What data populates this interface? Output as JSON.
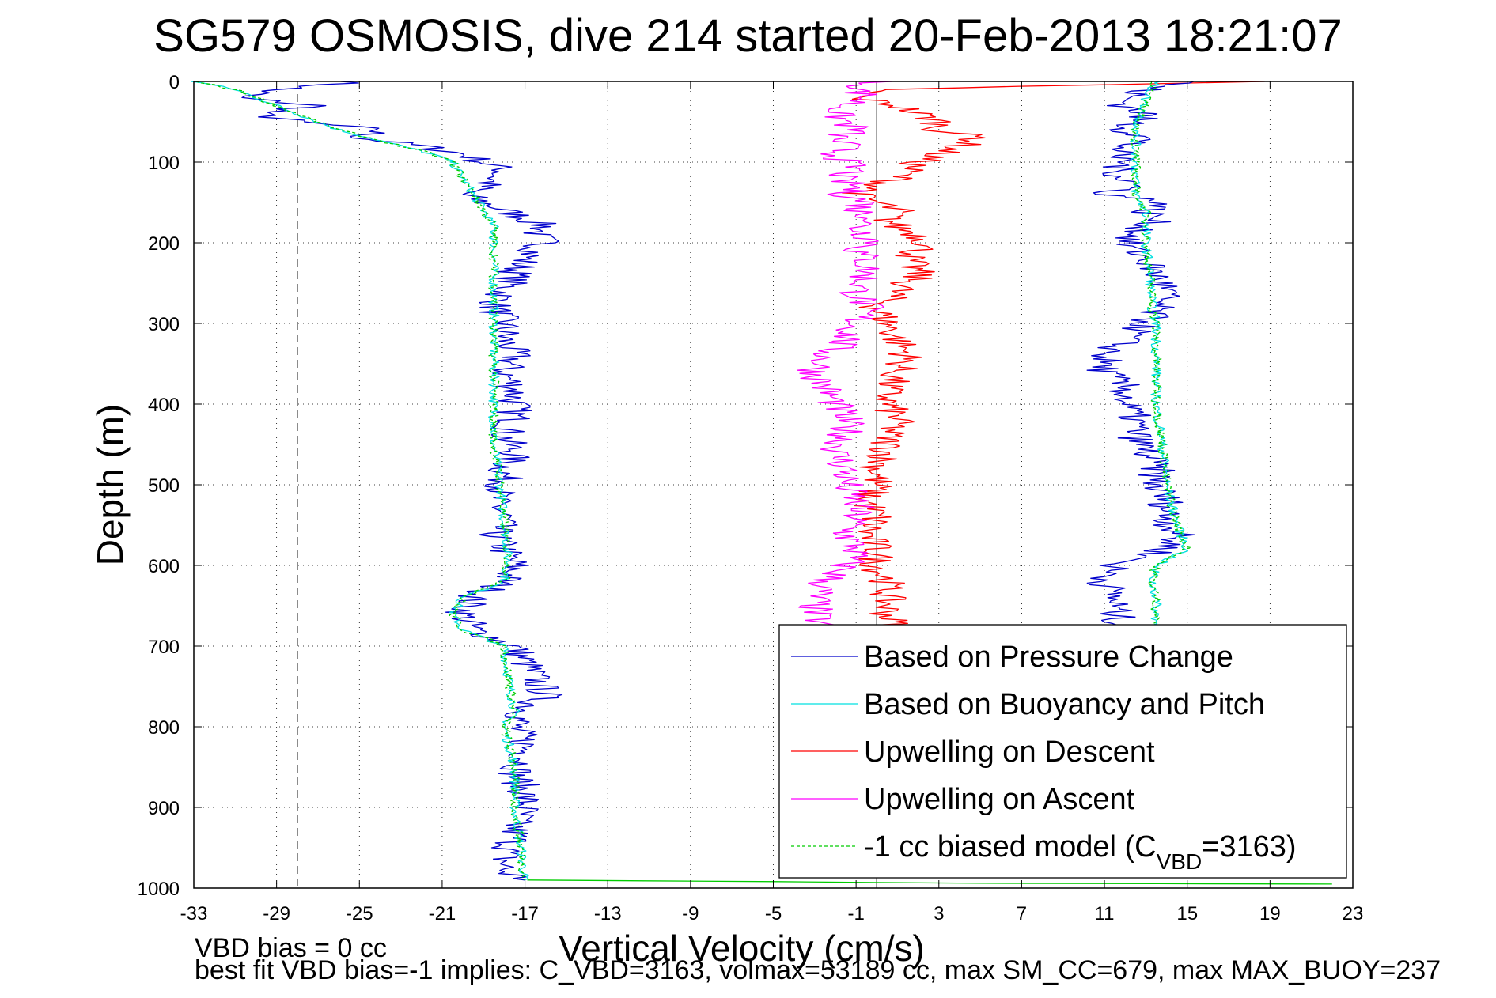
{
  "chart_data": {
    "type": "line",
    "title": "SG579 OSMOSIS, dive 214 started 20-Feb-2013 18:21:07",
    "xlabel": "Vertical Velocity (cm/s)",
    "ylabel": "Depth (m)",
    "xlim": [
      -33,
      23
    ],
    "ylim": [
      0,
      1000
    ],
    "y_reversed": true,
    "x_ticks": [
      "-33",
      "-29",
      "-25",
      "-21",
      "-17",
      "-13",
      "-9",
      "-5",
      "-1",
      "3",
      "7",
      "11",
      "15",
      "19",
      "23"
    ],
    "y_ticks": [
      "0",
      "100",
      "200",
      "300",
      "400",
      "500",
      "600",
      "700",
      "800",
      "900",
      "1000"
    ],
    "grid": true,
    "legend_position": "bottom-right",
    "reference_lines": [
      {
        "x": 0,
        "style": "solid",
        "color": "#000000"
      },
      {
        "x": -28,
        "style": "dashed",
        "color": "#000000"
      }
    ],
    "series": [
      {
        "name": "Based on Pressure Change",
        "color": "#0000cc",
        "style": "solid",
        "depth": [
          0,
          10,
          20,
          30,
          40,
          50,
          60,
          70,
          80,
          90,
          100,
          110,
          120,
          130,
          140,
          150,
          160,
          170,
          180,
          190,
          200,
          210,
          220,
          240,
          260,
          280,
          300,
          320,
          340,
          360,
          380,
          400,
          420,
          440,
          460,
          480,
          500,
          520,
          540,
          560,
          580,
          600,
          620,
          640,
          660,
          680,
          700,
          720,
          740,
          760,
          780,
          800,
          820,
          840,
          860,
          880,
          900,
          920,
          940,
          960,
          980,
          990
        ],
        "x": [
          -25,
          -29,
          -31,
          -27,
          -30,
          -28,
          -24,
          -25,
          -22,
          -20,
          -19,
          -18,
          -18.5,
          -19,
          -20,
          -19,
          -18,
          -17,
          -16,
          -16.5,
          -16,
          -16.5,
          -17,
          -17.5,
          -18,
          -18.5,
          -18,
          -18,
          -17.5,
          -18,
          -17.5,
          -17.5,
          -17.5,
          -18,
          -17.5,
          -18,
          -18,
          -18.5,
          -18,
          -18.5,
          -18,
          -17.5,
          -18,
          -19.5,
          -20,
          -19.5,
          -17.5,
          -17,
          -16.5,
          -16,
          -17,
          -17.5,
          -17,
          -17,
          -17.5,
          -17,
          -17,
          -17.5,
          -17.5,
          -18,
          -18,
          -17
        ]
      },
      {
        "name": "Based on Buoyancy and Pitch",
        "color": "#00e0e0",
        "style": "solid",
        "depth": [
          0,
          10,
          20,
          30,
          40,
          50,
          60,
          70,
          80,
          90,
          100,
          120,
          140,
          160,
          180,
          200,
          220,
          240,
          260,
          280,
          300,
          350,
          400,
          450,
          500,
          550,
          600,
          620,
          640,
          660,
          680,
          700,
          740,
          780,
          800,
          850,
          900,
          950,
          990
        ],
        "x": [
          -33,
          -31,
          -30,
          -29,
          -28,
          -27,
          -26,
          -24.5,
          -23,
          -21.5,
          -20.5,
          -20,
          -19.5,
          -19,
          -18.5,
          -18.5,
          -18.5,
          -18.5,
          -18.5,
          -18.5,
          -18.5,
          -18.5,
          -18.5,
          -18.5,
          -18.2,
          -18,
          -17.8,
          -18,
          -20,
          -20.5,
          -20,
          -18,
          -17.8,
          -17.5,
          -18,
          -17.5,
          -17.5,
          -17.2,
          -17
        ]
      },
      {
        "name": "Upwelling on Descent",
        "color": "#ff0000",
        "style": "solid",
        "depth": [
          0,
          10,
          20,
          30,
          40,
          50,
          60,
          70,
          80,
          90,
          100,
          110,
          120,
          130,
          140,
          150,
          160,
          170,
          180,
          190,
          200,
          210,
          220,
          240,
          260,
          280,
          300,
          320,
          340,
          360,
          380,
          400,
          420,
          440,
          460,
          480,
          500,
          520,
          540,
          560,
          580,
          600,
          620,
          640,
          660,
          680,
          690
        ],
        "x": [
          18,
          0,
          -1,
          1,
          2,
          3,
          3,
          5,
          4,
          3,
          2,
          1.5,
          1,
          0,
          -1,
          0,
          1,
          0.5,
          1,
          2,
          2.5,
          2,
          1.5,
          2,
          1,
          0,
          0.5,
          1,
          1.5,
          1,
          0.5,
          0.5,
          1,
          0.5,
          0.5,
          0,
          0,
          -0.5,
          0,
          -0.5,
          0,
          0,
          0.5,
          0.5,
          0.5,
          1,
          0.5
        ]
      },
      {
        "name": "Upwelling on Ascent",
        "color": "#ff00ff",
        "style": "solid",
        "depth": [
          0,
          10,
          20,
          30,
          40,
          50,
          60,
          70,
          80,
          90,
          100,
          110,
          120,
          130,
          140,
          150,
          160,
          170,
          180,
          190,
          200,
          210,
          220,
          240,
          260,
          280,
          300,
          320,
          340,
          360,
          380,
          400,
          420,
          440,
          460,
          480,
          500,
          520,
          540,
          560,
          580,
          600,
          620,
          640,
          660,
          680,
          690
        ],
        "x": [
          0,
          -1,
          -0.5,
          -1.5,
          -2,
          -1.5,
          -1,
          -2,
          -1.5,
          -2,
          -1.5,
          -1,
          -2,
          -1,
          -1.5,
          -0.5,
          -1,
          0,
          -1,
          -0.5,
          0,
          -1,
          -0.5,
          -0.5,
          -1,
          -0.5,
          -1,
          -1.5,
          -2.5,
          -3,
          -2.5,
          -2,
          -1.5,
          -1.5,
          -2,
          -1.5,
          -1.5,
          -1,
          -1,
          -1.5,
          -1,
          -1.5,
          -2.5,
          -3,
          -3,
          -2.5,
          -2.5
        ]
      },
      {
        "name": "-1 cc biased model (C_VBD=3163)",
        "color": "#00cc00",
        "style": "dashed",
        "depth": [
          0,
          10,
          20,
          30,
          40,
          50,
          60,
          70,
          80,
          90,
          100,
          120,
          140,
          160,
          180,
          200,
          220,
          240,
          260,
          280,
          300,
          350,
          400,
          450,
          500,
          550,
          600,
          620,
          640,
          660,
          680,
          700,
          740,
          780,
          800,
          850,
          900,
          950,
          990
        ],
        "x": [
          -33,
          -31,
          -30,
          -29,
          -28,
          -27,
          -26,
          -24.5,
          -23,
          -21.5,
          -20.5,
          -20,
          -19.5,
          -19,
          -18.5,
          -18.5,
          -18.5,
          -18.5,
          -18.5,
          -18.5,
          -18.5,
          -18.5,
          -18.5,
          -18.5,
          -18.2,
          -18,
          -17.8,
          -18,
          -20,
          -20.5,
          -20,
          -18,
          -17.8,
          -17.5,
          -18,
          -17.5,
          -17.5,
          -17.2,
          -17
        ]
      },
      {
        "name": "",
        "color": "#0000cc",
        "style": "solid",
        "segment_of": "Based on Pressure Change (ascent)",
        "depth": [
          0,
          10,
          20,
          30,
          40,
          50,
          60,
          70,
          80,
          90,
          100,
          110,
          120,
          130,
          140,
          150,
          160,
          170,
          180,
          190,
          200,
          210,
          220,
          240,
          260,
          280,
          300,
          320,
          340,
          360,
          380,
          400,
          420,
          440,
          460,
          480,
          500,
          520,
          540,
          560,
          580,
          600,
          620,
          640,
          660,
          680
        ],
        "x": [
          15,
          13,
          12,
          12,
          13,
          12.5,
          12,
          13,
          12,
          11.5,
          12,
          11.5,
          12,
          12.5,
          11,
          14,
          13,
          13.5,
          13,
          12.5,
          12,
          12.5,
          13,
          13.5,
          14,
          13.5,
          13,
          12,
          11,
          11,
          12,
          12,
          12.5,
          12.5,
          13,
          13.5,
          13.5,
          14,
          14,
          14.5,
          14,
          11.5,
          11,
          11.5,
          11.5,
          12
        ]
      },
      {
        "name": "",
        "color": "#00e0e0",
        "style": "solid",
        "segment_of": "Based on Buoyancy and Pitch (ascent)",
        "depth": [
          0,
          20,
          40,
          60,
          80,
          100,
          120,
          140,
          160,
          180,
          200,
          240,
          280,
          300,
          350,
          400,
          450,
          500,
          550,
          580,
          600,
          620,
          640,
          660,
          680
        ],
        "x": [
          13.5,
          13,
          12.8,
          12.5,
          12.5,
          12.5,
          12.5,
          12.5,
          13,
          13,
          13,
          13.2,
          13.3,
          13.5,
          13.5,
          13.5,
          13.8,
          14,
          14.5,
          15,
          13.5,
          13.3,
          13.5,
          13.5,
          13.5
        ]
      },
      {
        "name": "",
        "color": "#00cc00",
        "style": "dashed",
        "segment_of": "-1 cc biased model (ascent)",
        "depth": [
          0,
          20,
          40,
          60,
          80,
          100,
          120,
          140,
          160,
          180,
          200,
          240,
          280,
          300,
          350,
          400,
          450,
          500,
          550,
          580,
          600,
          620,
          640,
          660,
          680
        ],
        "x": [
          13.5,
          13,
          12.8,
          12.5,
          12.5,
          12.5,
          12.5,
          12.5,
          13,
          13,
          13,
          13.2,
          13.3,
          13.5,
          13.5,
          13.5,
          13.8,
          14,
          14.5,
          15,
          13.5,
          13.3,
          13.5,
          13.5,
          13.5
        ]
      },
      {
        "name": "",
        "color": "#00cc00",
        "style": "solid",
        "segment_of": "bottom turn",
        "depth": [
          990,
          992,
          994,
          995
        ],
        "x": [
          -17,
          -5,
          5,
          22
        ]
      }
    ]
  },
  "notes": {
    "line1": "VBD bias = 0 cc",
    "line2": "best fit VBD bias=-1 implies: C_VBD=3163, volmax=53189 cc, max SM_CC=679, max MAX_BUOY=237"
  },
  "legend": {
    "entries": [
      {
        "label": "Based on Pressure Change",
        "color": "#0000cc",
        "dash": false
      },
      {
        "label": "Based on Buoyancy and Pitch",
        "color": "#00e0e0",
        "dash": false
      },
      {
        "label": "Upwelling on Descent",
        "color": "#ff0000",
        "dash": false
      },
      {
        "label": "Upwelling on Ascent",
        "color": "#ff00ff",
        "dash": false
      },
      {
        "label": "-1 cc biased model (C",
        "sub": "VBD",
        "tail": "=3163)",
        "color": "#00cc00",
        "dash": true
      }
    ]
  }
}
